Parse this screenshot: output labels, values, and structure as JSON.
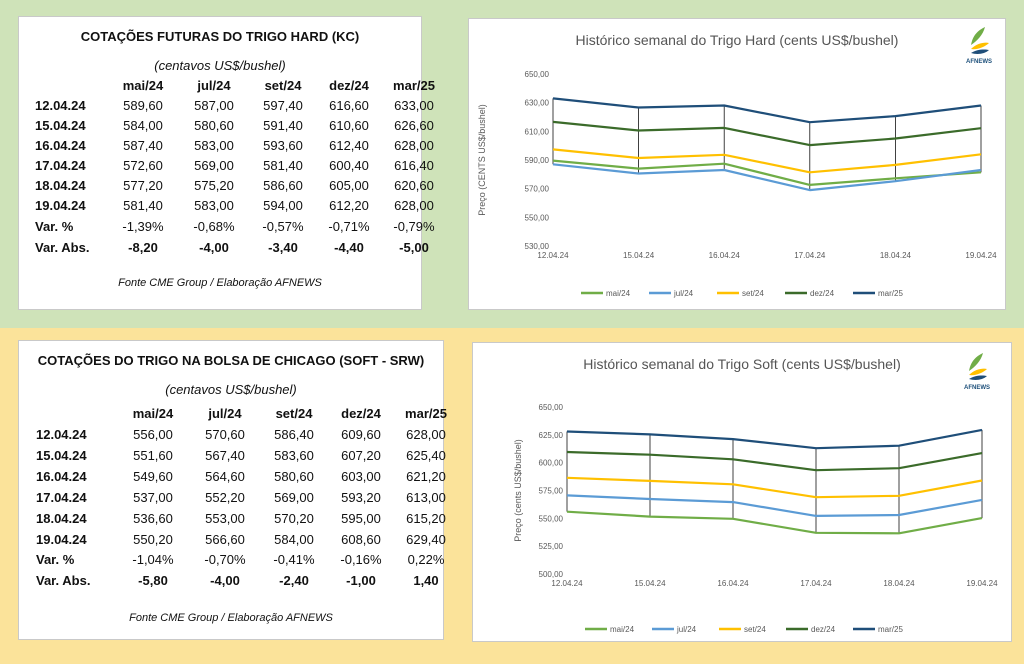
{
  "colors": {
    "mai_24": "#70ad47",
    "jul_24": "#5b9bd5",
    "set_24": "#ffc000",
    "dez_24": "#3b6b2a",
    "mar_25": "#1f4e79"
  },
  "logo": {
    "icon": "wheat-leaf-logo-icon",
    "label": "AFNEWS"
  },
  "hard": {
    "title": "COTAÇÕES FUTURAS DO TRIGO HARD (KC)",
    "subtitle": "(centavos US$/bushel)",
    "headers": [
      "mai/24",
      "jul/24",
      "set/24",
      "dez/24",
      "mar/25"
    ],
    "rows": [
      {
        "date": "12.04.24",
        "v": [
          "589,60",
          "587,00",
          "597,40",
          "616,60",
          "633,00"
        ]
      },
      {
        "date": "15.04.24",
        "v": [
          "584,00",
          "580,60",
          "591,40",
          "610,60",
          "626,60"
        ]
      },
      {
        "date": "16.04.24",
        "v": [
          "587,40",
          "583,00",
          "593,60",
          "612,40",
          "628,00"
        ]
      },
      {
        "date": "17.04.24",
        "v": [
          "572,60",
          "569,00",
          "581,40",
          "600,40",
          "616,40"
        ]
      },
      {
        "date": "18.04.24",
        "v": [
          "577,20",
          "575,20",
          "586,60",
          "605,00",
          "620,60"
        ]
      },
      {
        "date": "19.04.24",
        "v": [
          "581,40",
          "583,00",
          "594,00",
          "612,20",
          "628,00"
        ]
      }
    ],
    "var_pct": {
      "label": "Var. %",
      "v": [
        "-1,39%",
        "-0,68%",
        "-0,57%",
        "-0,71%",
        "-0,79%"
      ]
    },
    "var_abs": {
      "label": "Var. Abs.",
      "v": [
        "-8,20",
        "-4,00",
        "-3,40",
        "-4,40",
        "-5,00"
      ]
    },
    "source": "Fonte CME Group / Elaboração AFNEWS"
  },
  "soft": {
    "title": "COTAÇÕES DO TRIGO NA BOLSA DE CHICAGO (SOFT - SRW)",
    "subtitle": "(centavos US$/bushel)",
    "headers": [
      "mai/24",
      "jul/24",
      "set/24",
      "dez/24",
      "mar/25"
    ],
    "rows": [
      {
        "date": "12.04.24",
        "v": [
          "556,00",
          "570,60",
          "586,40",
          "609,60",
          "628,00"
        ]
      },
      {
        "date": "15.04.24",
        "v": [
          "551,60",
          "567,40",
          "583,60",
          "607,20",
          "625,40"
        ]
      },
      {
        "date": "16.04.24",
        "v": [
          "549,60",
          "564,60",
          "580,60",
          "603,00",
          "621,20"
        ]
      },
      {
        "date": "17.04.24",
        "v": [
          "537,00",
          "552,20",
          "569,00",
          "593,20",
          "613,00"
        ]
      },
      {
        "date": "18.04.24",
        "v": [
          "536,60",
          "553,00",
          "570,20",
          "595,00",
          "615,20"
        ]
      },
      {
        "date": "19.04.24",
        "v": [
          "550,20",
          "566,60",
          "584,00",
          "608,60",
          "629,40"
        ]
      }
    ],
    "var_pct": {
      "label": "Var. %",
      "v": [
        "-1,04%",
        "-0,70%",
        "-0,41%",
        "-0,16%",
        "0,22%"
      ]
    },
    "var_abs": {
      "label": "Var. Abs.",
      "v": [
        "-5,80",
        "-4,00",
        "-2,40",
        "-1,00",
        "1,40"
      ]
    },
    "source": "Fonte CME Group / Elaboração AFNEWS"
  },
  "chart_data": [
    {
      "type": "line",
      "title": "Histórico semanal do Trigo Hard (cents US$/bushel)",
      "ylabel": "Preço (CENTS US$/bushel)",
      "xlabel": "",
      "x": [
        "12.04.24",
        "15.04.24",
        "16.04.24",
        "17.04.24",
        "18.04.24",
        "19.04.24"
      ],
      "ylim": [
        530,
        650
      ],
      "yticks": [
        530,
        550,
        570,
        590,
        610,
        630,
        650
      ],
      "ytick_labels": [
        "530,00",
        "550,00",
        "570,00",
        "590,00",
        "610,00",
        "630,00",
        "650,00"
      ],
      "grid": false,
      "legend": "bottom",
      "series": [
        {
          "name": "mai/24",
          "color": "#70ad47",
          "values": [
            589.6,
            584.0,
            587.4,
            572.6,
            577.2,
            581.4
          ]
        },
        {
          "name": "jul/24",
          "color": "#5b9bd5",
          "values": [
            587.0,
            580.6,
            583.0,
            569.0,
            575.2,
            583.0
          ]
        },
        {
          "name": "set/24",
          "color": "#ffc000",
          "values": [
            597.4,
            591.4,
            593.6,
            581.4,
            586.6,
            594.0
          ]
        },
        {
          "name": "dez/24",
          "color": "#3b6b2a",
          "values": [
            616.6,
            610.6,
            612.4,
            600.4,
            605.0,
            612.2
          ]
        },
        {
          "name": "mar/25",
          "color": "#1f4e79",
          "values": [
            633.0,
            626.6,
            628.0,
            616.4,
            620.6,
            628.0
          ]
        }
      ]
    },
    {
      "type": "line",
      "title": "Histórico semanal do Trigo Soft (cents US$/bushel)",
      "ylabel": "Preço (cents US$/bushel)",
      "xlabel": "",
      "x": [
        "12.04.24",
        "15.04.24",
        "16.04.24",
        "17.04.24",
        "18.04.24",
        "19.04.24"
      ],
      "ylim": [
        500,
        650
      ],
      "yticks": [
        500,
        525,
        550,
        575,
        600,
        625,
        650
      ],
      "ytick_labels": [
        "500,00",
        "525,00",
        "550,00",
        "575,00",
        "600,00",
        "625,00",
        "650,00"
      ],
      "grid": false,
      "legend": "bottom",
      "series": [
        {
          "name": "mai/24",
          "color": "#70ad47",
          "values": [
            556.0,
            551.6,
            549.6,
            537.0,
            536.6,
            550.2
          ]
        },
        {
          "name": "jul/24",
          "color": "#5b9bd5",
          "values": [
            570.6,
            567.4,
            564.6,
            552.2,
            553.0,
            566.6
          ]
        },
        {
          "name": "set/24",
          "color": "#ffc000",
          "values": [
            586.4,
            583.6,
            580.6,
            569.0,
            570.2,
            584.0
          ]
        },
        {
          "name": "dez/24",
          "color": "#3b6b2a",
          "values": [
            609.6,
            607.2,
            603.0,
            593.2,
            595.0,
            608.6
          ]
        },
        {
          "name": "mar/25",
          "color": "#1f4e79",
          "values": [
            628.0,
            625.4,
            621.2,
            613.0,
            615.2,
            629.4
          ]
        }
      ]
    }
  ]
}
